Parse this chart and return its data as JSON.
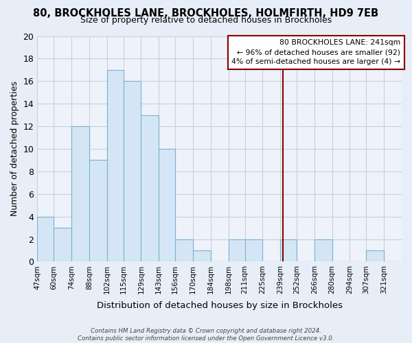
{
  "title": "80, BROCKHOLES LANE, BROCKHOLES, HOLMFIRTH, HD9 7EB",
  "subtitle": "Size of property relative to detached houses in Brockholes",
  "xlabel": "Distribution of detached houses by size in Brockholes",
  "ylabel": "Number of detached properties",
  "bin_labels": [
    "47sqm",
    "60sqm",
    "74sqm",
    "88sqm",
    "102sqm",
    "115sqm",
    "129sqm",
    "143sqm",
    "156sqm",
    "170sqm",
    "184sqm",
    "198sqm",
    "211sqm",
    "225sqm",
    "239sqm",
    "252sqm",
    "266sqm",
    "280sqm",
    "294sqm",
    "307sqm",
    "321sqm"
  ],
  "bin_edges": [
    47,
    60,
    74,
    88,
    102,
    115,
    129,
    143,
    156,
    170,
    184,
    198,
    211,
    225,
    239,
    252,
    266,
    280,
    294,
    307,
    321,
    335
  ],
  "counts": [
    4,
    3,
    12,
    9,
    17,
    16,
    13,
    10,
    2,
    1,
    0,
    2,
    2,
    0,
    2,
    0,
    2,
    0,
    0,
    1,
    0
  ],
  "bar_color": "#d4e6f5",
  "bar_edge_color": "#7ab0cc",
  "vline_x": 241,
  "vline_color": "#8b0000",
  "annotation_title": "80 BROCKHOLES LANE: 241sqm",
  "annotation_line1": "← 96% of detached houses are smaller (92)",
  "annotation_line2": "4% of semi-detached houses are larger (4) →",
  "annotation_box_color": "#ffffff",
  "annotation_box_edge": "#8b0000",
  "footer_line1": "Contains HM Land Registry data © Crown copyright and database right 2024.",
  "footer_line2": "Contains public sector information licensed under the Open Government Licence v3.0.",
  "background_color": "#e8eef8",
  "grid_color": "#c8d0dc",
  "plot_bg_color": "#eef2fa",
  "ylim": [
    0,
    20
  ],
  "yticks": [
    0,
    2,
    4,
    6,
    8,
    10,
    12,
    14,
    16,
    18,
    20
  ]
}
